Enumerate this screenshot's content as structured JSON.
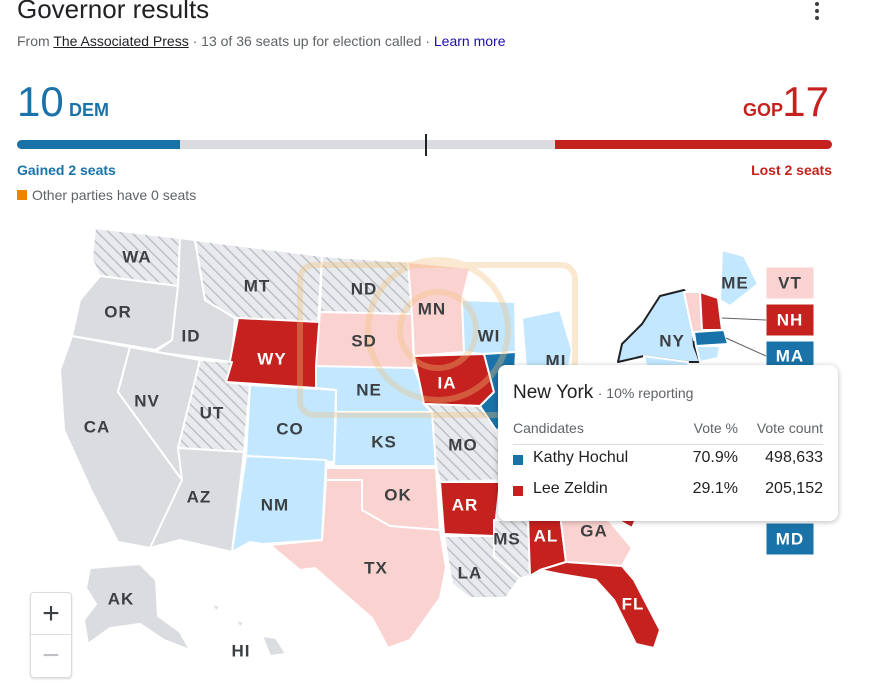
{
  "header": {
    "title": "Governor results",
    "from": "From",
    "source": "The Associated Press",
    "sep1": "·",
    "called": "13 of 36 seats up for election called",
    "sep2": "·",
    "learn_more": "Learn more"
  },
  "dem": {
    "count": "10",
    "label": "DEM",
    "change": "Gained 2 seats",
    "seats": 10,
    "color": "#1a73a8"
  },
  "gop": {
    "count": "17",
    "label": "GOP",
    "change": "Lost 2 seats",
    "seats": 17,
    "color": "#c5221f"
  },
  "majority_marker_seats": 25,
  "total_seats": 50,
  "other": {
    "text": "Other parties have 0 seats",
    "color": "#ea8600"
  },
  "legend_colors": {
    "dem_called": "#1a73a8",
    "dem_leading": "#c2e7ff",
    "gop_called": "#c5221f",
    "gop_leading": "#fad2cf",
    "no_race": "#dadce0",
    "no_results": "hatched"
  },
  "states": [
    {
      "abbr": "WA",
      "status": "no_results"
    },
    {
      "abbr": "OR",
      "status": "no_race"
    },
    {
      "abbr": "CA",
      "status": "no_race"
    },
    {
      "abbr": "ID",
      "status": "no_race"
    },
    {
      "abbr": "NV",
      "status": "no_race"
    },
    {
      "abbr": "MT",
      "status": "no_results"
    },
    {
      "abbr": "WY",
      "status": "gop_called"
    },
    {
      "abbr": "UT",
      "status": "no_results"
    },
    {
      "abbr": "AZ",
      "status": "no_race"
    },
    {
      "abbr": "CO",
      "status": "dem_leading"
    },
    {
      "abbr": "NM",
      "status": "dem_leading"
    },
    {
      "abbr": "ND",
      "status": "no_results"
    },
    {
      "abbr": "SD",
      "status": "gop_leading"
    },
    {
      "abbr": "NE",
      "status": "dem_leading"
    },
    {
      "abbr": "KS",
      "status": "dem_leading"
    },
    {
      "abbr": "OK",
      "status": "gop_leading"
    },
    {
      "abbr": "TX",
      "status": "gop_leading"
    },
    {
      "abbr": "MN",
      "status": "gop_leading"
    },
    {
      "abbr": "IA",
      "status": "gop_called"
    },
    {
      "abbr": "MO",
      "status": "no_results"
    },
    {
      "abbr": "AR",
      "status": "gop_called"
    },
    {
      "abbr": "LA",
      "status": "no_results"
    },
    {
      "abbr": "WI",
      "status": "dem_leading"
    },
    {
      "abbr": "MI",
      "status": "dem_leading"
    },
    {
      "abbr": "MS",
      "status": "no_results"
    },
    {
      "abbr": "AL",
      "status": "gop_called"
    },
    {
      "abbr": "GA",
      "status": "gop_leading"
    },
    {
      "abbr": "FL",
      "status": "gop_called"
    },
    {
      "abbr": "NY",
      "status": "dem_leading"
    },
    {
      "abbr": "ME",
      "status": "dem_leading"
    },
    {
      "abbr": "VT",
      "status": "gop_leading"
    },
    {
      "abbr": "NH",
      "status": "gop_called"
    },
    {
      "abbr": "MA",
      "status": "dem_called"
    },
    {
      "abbr": "MD",
      "status": "dem_called"
    },
    {
      "abbr": "AK",
      "status": "no_race"
    },
    {
      "abbr": "HI",
      "status": "no_race"
    }
  ],
  "tooltip": {
    "state": "New York",
    "reporting": "· 10% reporting",
    "col_candidates": "Candidates",
    "col_vote_pct": "Vote %",
    "col_vote_count": "Vote count",
    "candidates": [
      {
        "name": "Kathy Hochul",
        "pct": "70.9%",
        "count": "498,633",
        "color": "#1a73a8"
      },
      {
        "name": "Lee Zeldin",
        "pct": "29.1%",
        "count": "205,152",
        "color": "#c5221f"
      }
    ]
  },
  "zoom": {
    "in": "+",
    "out": "−"
  }
}
